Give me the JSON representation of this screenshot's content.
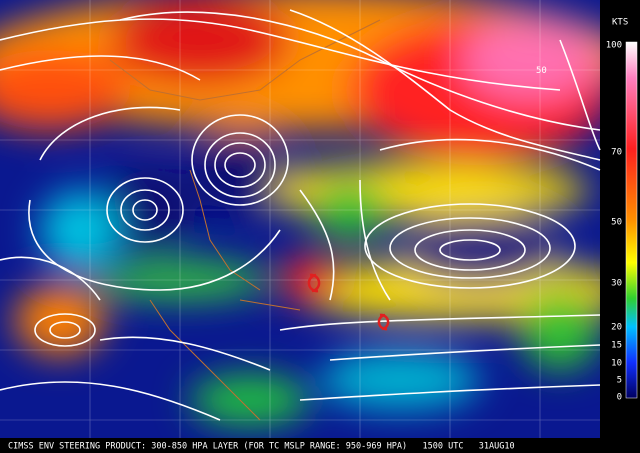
{
  "caption": "CIMSS ENV STEERING PRODUCT: 300-850 HPA LAYER (FOR TC MSLP RANGE: 950-969 HPA)   1500 UTC   31AUG10",
  "colorbar": {
    "unit": "KTS",
    "labels": [
      "100",
      "70",
      "50",
      "30",
      "20",
      "15",
      "10",
      "5",
      "0"
    ]
  },
  "map_labels": [
    "50"
  ]
}
